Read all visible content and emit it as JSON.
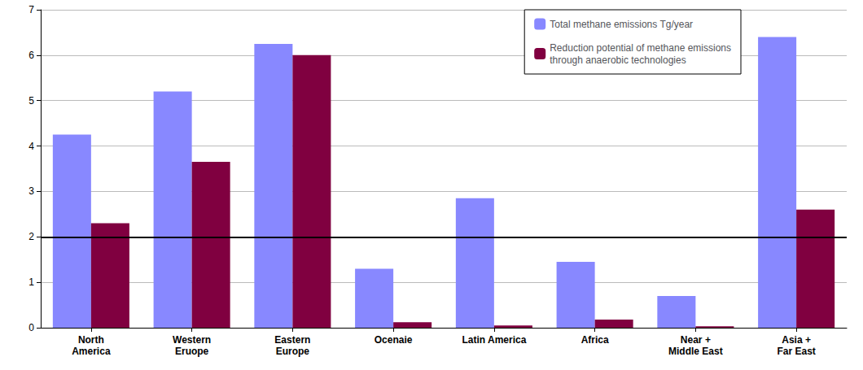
{
  "chart_data": {
    "type": "bar",
    "categories": [
      "North\nAmerica",
      "Western\nEruope",
      "Eastern\nEurope",
      "Ocenaie",
      "Latin America",
      "Africa",
      "Near +\nMiddle East",
      "Asia +\nFar East"
    ],
    "series": [
      {
        "name": "Total methane emissions Tg/year",
        "color": "#8888ff",
        "values": [
          4.25,
          5.2,
          6.25,
          1.3,
          2.85,
          1.45,
          0.7,
          6.4
        ]
      },
      {
        "name": "Reduction potential of methane emissions\nthrough anaerobic technologies",
        "color": "#800040",
        "values": [
          2.3,
          3.65,
          6.0,
          0.12,
          0.05,
          0.18,
          0.03,
          2.6
        ]
      }
    ],
    "ylim": [
      0,
      7
    ],
    "yticks": [
      0,
      1,
      2,
      3,
      4,
      5,
      6,
      7
    ],
    "hline_y": 2,
    "grid": true,
    "legend": "upper right"
  }
}
